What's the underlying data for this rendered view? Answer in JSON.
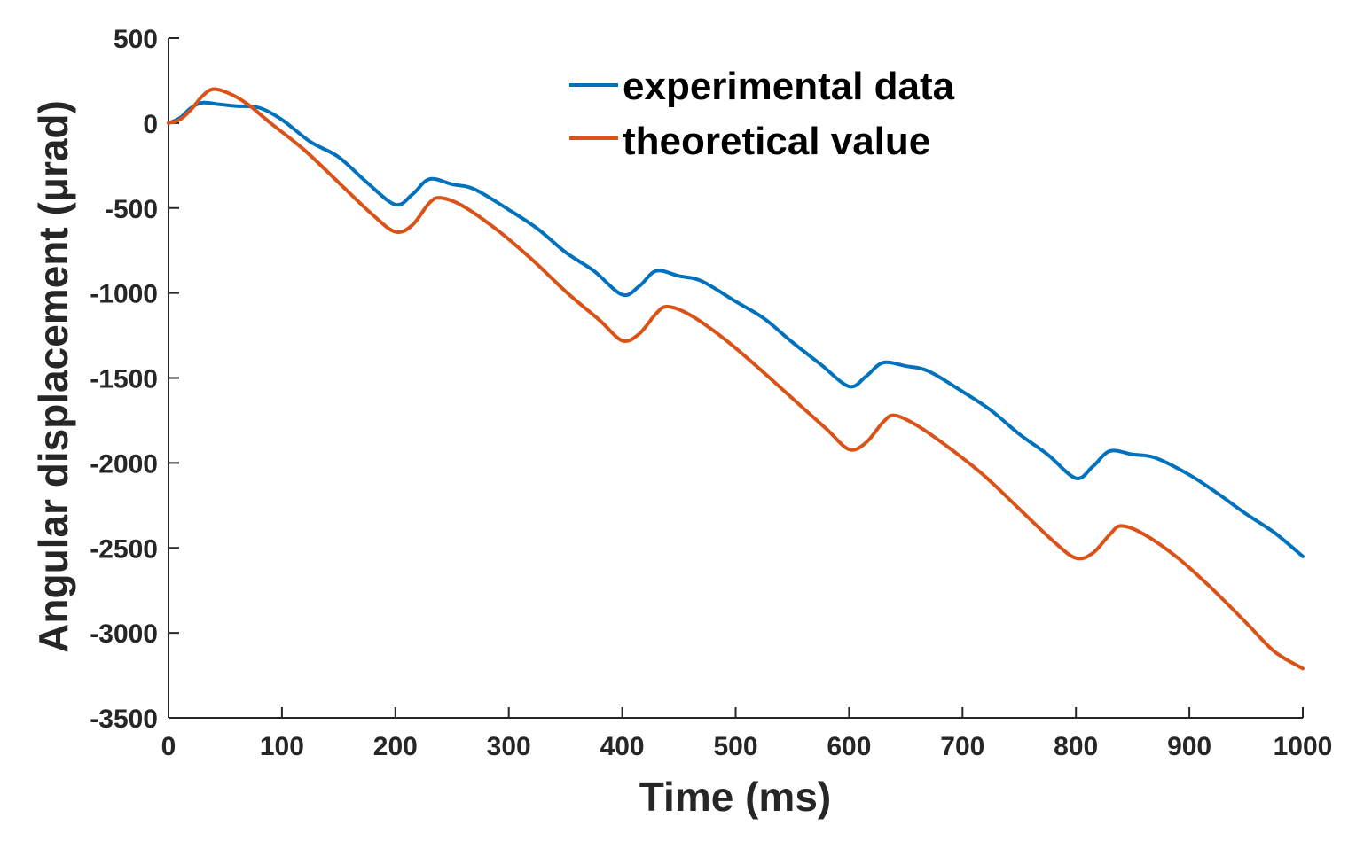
{
  "chart_data": {
    "type": "line",
    "title": "",
    "xlabel": "Time (ms)",
    "ylabel": "Angular displacement (μrad)",
    "xlim": [
      0,
      1000
    ],
    "ylim": [
      -3500,
      500
    ],
    "xticks": [
      0,
      100,
      200,
      300,
      400,
      500,
      600,
      700,
      800,
      900,
      1000
    ],
    "yticks": [
      500,
      0,
      -500,
      -1000,
      -1500,
      -2000,
      -2500,
      -3000,
      -3500
    ],
    "legend_position": "top-center",
    "grid": false,
    "series": [
      {
        "name": "experimental data",
        "color": "#0072BD",
        "points": [
          [
            0,
            0
          ],
          [
            10,
            30
          ],
          [
            20,
            90
          ],
          [
            30,
            120
          ],
          [
            45,
            110
          ],
          [
            60,
            100
          ],
          [
            80,
            90
          ],
          [
            100,
            20
          ],
          [
            125,
            -110
          ],
          [
            150,
            -200
          ],
          [
            175,
            -350
          ],
          [
            200,
            -480
          ],
          [
            215,
            -420
          ],
          [
            230,
            -330
          ],
          [
            250,
            -360
          ],
          [
            270,
            -390
          ],
          [
            300,
            -510
          ],
          [
            325,
            -620
          ],
          [
            350,
            -760
          ],
          [
            375,
            -870
          ],
          [
            400,
            -1010
          ],
          [
            415,
            -960
          ],
          [
            430,
            -870
          ],
          [
            450,
            -900
          ],
          [
            470,
            -930
          ],
          [
            500,
            -1050
          ],
          [
            525,
            -1150
          ],
          [
            550,
            -1290
          ],
          [
            575,
            -1420
          ],
          [
            600,
            -1550
          ],
          [
            615,
            -1490
          ],
          [
            630,
            -1410
          ],
          [
            650,
            -1430
          ],
          [
            670,
            -1460
          ],
          [
            700,
            -1580
          ],
          [
            725,
            -1690
          ],
          [
            750,
            -1830
          ],
          [
            775,
            -1950
          ],
          [
            800,
            -2090
          ],
          [
            815,
            -2020
          ],
          [
            830,
            -1930
          ],
          [
            850,
            -1950
          ],
          [
            870,
            -1970
          ],
          [
            900,
            -2070
          ],
          [
            925,
            -2180
          ],
          [
            950,
            -2300
          ],
          [
            975,
            -2410
          ],
          [
            1000,
            -2550
          ]
        ]
      },
      {
        "name": "theoretical value",
        "color": "#D95319",
        "points": [
          [
            0,
            0
          ],
          [
            10,
            20
          ],
          [
            20,
            80
          ],
          [
            30,
            160
          ],
          [
            40,
            200
          ],
          [
            55,
            170
          ],
          [
            70,
            110
          ],
          [
            90,
            0
          ],
          [
            120,
            -160
          ],
          [
            150,
            -350
          ],
          [
            180,
            -540
          ],
          [
            200,
            -640
          ],
          [
            215,
            -600
          ],
          [
            230,
            -470
          ],
          [
            240,
            -440
          ],
          [
            260,
            -490
          ],
          [
            290,
            -630
          ],
          [
            320,
            -800
          ],
          [
            350,
            -990
          ],
          [
            380,
            -1160
          ],
          [
            400,
            -1280
          ],
          [
            415,
            -1240
          ],
          [
            430,
            -1120
          ],
          [
            440,
            -1080
          ],
          [
            460,
            -1130
          ],
          [
            490,
            -1270
          ],
          [
            520,
            -1440
          ],
          [
            550,
            -1620
          ],
          [
            580,
            -1800
          ],
          [
            600,
            -1920
          ],
          [
            615,
            -1880
          ],
          [
            630,
            -1760
          ],
          [
            640,
            -1720
          ],
          [
            660,
            -1780
          ],
          [
            690,
            -1920
          ],
          [
            720,
            -2080
          ],
          [
            750,
            -2270
          ],
          [
            780,
            -2460
          ],
          [
            800,
            -2560
          ],
          [
            815,
            -2530
          ],
          [
            830,
            -2420
          ],
          [
            840,
            -2370
          ],
          [
            860,
            -2420
          ],
          [
            890,
            -2560
          ],
          [
            920,
            -2740
          ],
          [
            950,
            -2940
          ],
          [
            975,
            -3110
          ],
          [
            1000,
            -3210
          ]
        ]
      }
    ]
  }
}
